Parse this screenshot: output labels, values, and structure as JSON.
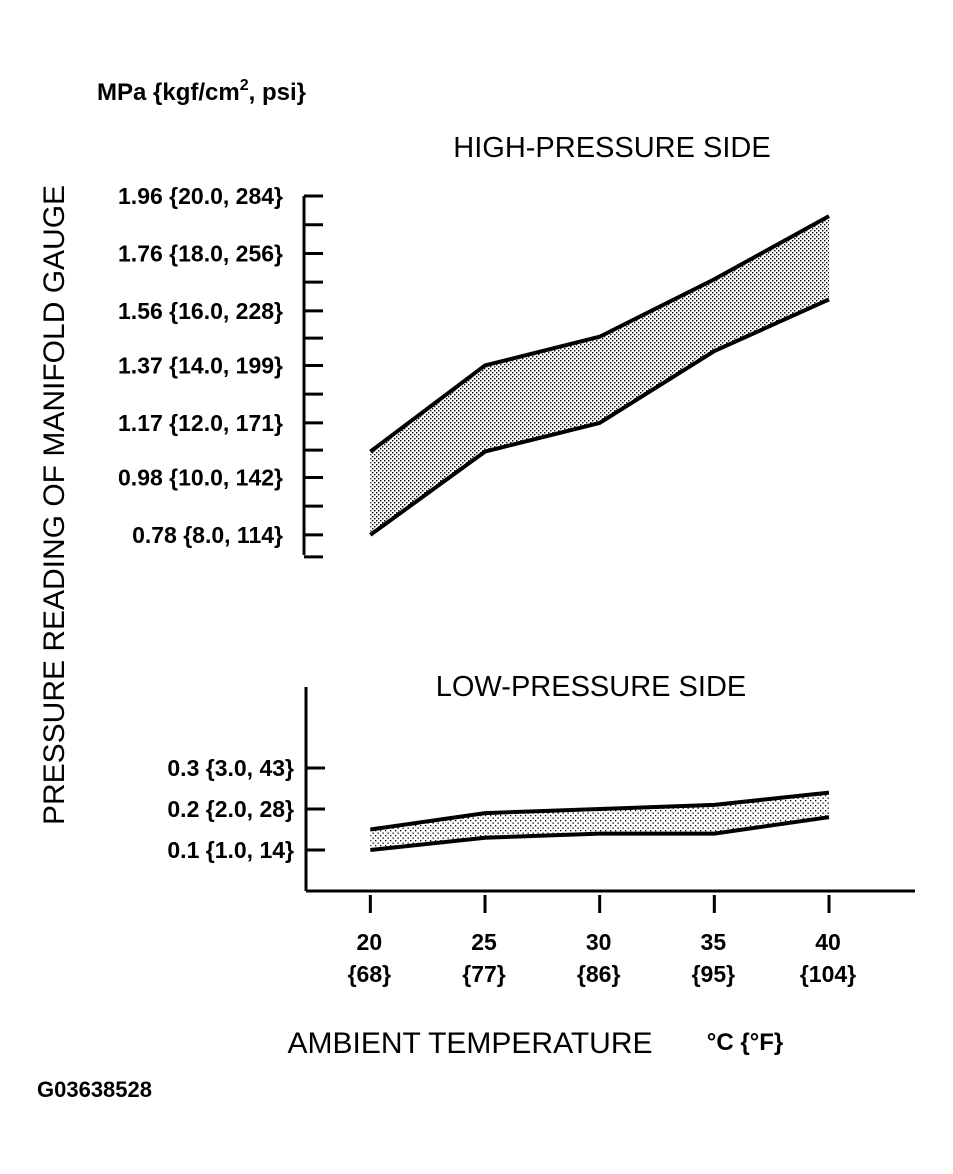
{
  "unit_label": "MPa {kgf/cm2, psi}",
  "ylabel": "PRESSURE READING OF MANIFOLD GAUGE",
  "xlabel": "AMBIENT TEMPERATURE",
  "xlabel_unit": "°C {°F}",
  "figure_id": "G03638528",
  "colors": {
    "ink": "#000000",
    "band_fill": "#bdbdbd",
    "background": "#ffffff"
  },
  "chart_data": [
    {
      "type": "area",
      "title": "HIGH-PRESSURE SIDE",
      "x": [
        20,
        25,
        30,
        35,
        40
      ],
      "x_tick_labels": [
        {
          "top": "20",
          "bottom": "{68}"
        },
        {
          "top": "25",
          "bottom": "{77}"
        },
        {
          "top": "30",
          "bottom": "{86}"
        },
        {
          "top": "35",
          "bottom": "{95}"
        },
        {
          "top": "40",
          "bottom": "{104}"
        }
      ],
      "y_ticks": [
        {
          "value": 0.78,
          "label": "0.78 {8.0, 114}"
        },
        {
          "value": 0.98,
          "label": "0.98 {10.0, 142}"
        },
        {
          "value": 1.17,
          "label": "1.17 {12.0, 171}"
        },
        {
          "value": 1.37,
          "label": "1.37 {14.0, 199}"
        },
        {
          "value": 1.56,
          "label": "1.56 {16.0, 228}"
        },
        {
          "value": 1.76,
          "label": "1.76 {18.0, 256}"
        },
        {
          "value": 1.96,
          "label": "1.96 {20.0, 284}"
        }
      ],
      "ylim": [
        0.71,
        1.96
      ],
      "xlim": [
        17.5,
        40
      ],
      "band": {
        "upper": [
          1.07,
          1.37,
          1.47,
          1.67,
          1.89
        ],
        "lower": [
          0.78,
          1.07,
          1.17,
          1.42,
          1.6
        ]
      }
    },
    {
      "type": "area",
      "title": "LOW-PRESSURE SIDE",
      "x": [
        20,
        25,
        30,
        35,
        40
      ],
      "y_ticks": [
        {
          "value": 0.1,
          "label": "0.1 {1.0, 14}"
        },
        {
          "value": 0.2,
          "label": "0.2 {2.0, 28}"
        },
        {
          "value": 0.3,
          "label": "0.3 {3.0, 43}"
        }
      ],
      "ylim": [
        0.0,
        0.5
      ],
      "xlim": [
        17.5,
        44
      ],
      "band": {
        "upper": [
          0.15,
          0.19,
          0.2,
          0.21,
          0.24
        ],
        "lower": [
          0.1,
          0.13,
          0.14,
          0.14,
          0.18
        ]
      }
    }
  ]
}
